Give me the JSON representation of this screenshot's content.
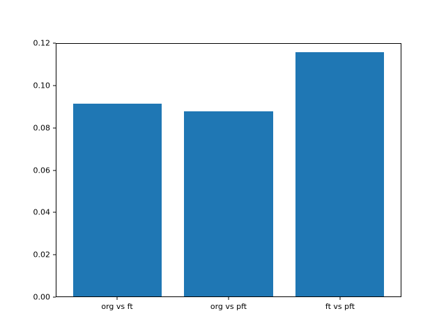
{
  "chart_data": {
    "type": "bar",
    "categories": [
      "org vs ft",
      "org vs pft",
      "ft vs pft"
    ],
    "values": [
      0.0915,
      0.0878,
      0.116
    ],
    "title": "",
    "xlabel": "",
    "ylabel": "",
    "ylim": [
      0,
      0.12
    ],
    "ytick_labels": [
      "0.00",
      "0.02",
      "0.04",
      "0.06",
      "0.08",
      "0.10",
      "0.12"
    ],
    "bar_color": "#1f77b4",
    "background_color": "#ffffff",
    "axis_color": "#000000",
    "grid": false,
    "legend": null
  }
}
